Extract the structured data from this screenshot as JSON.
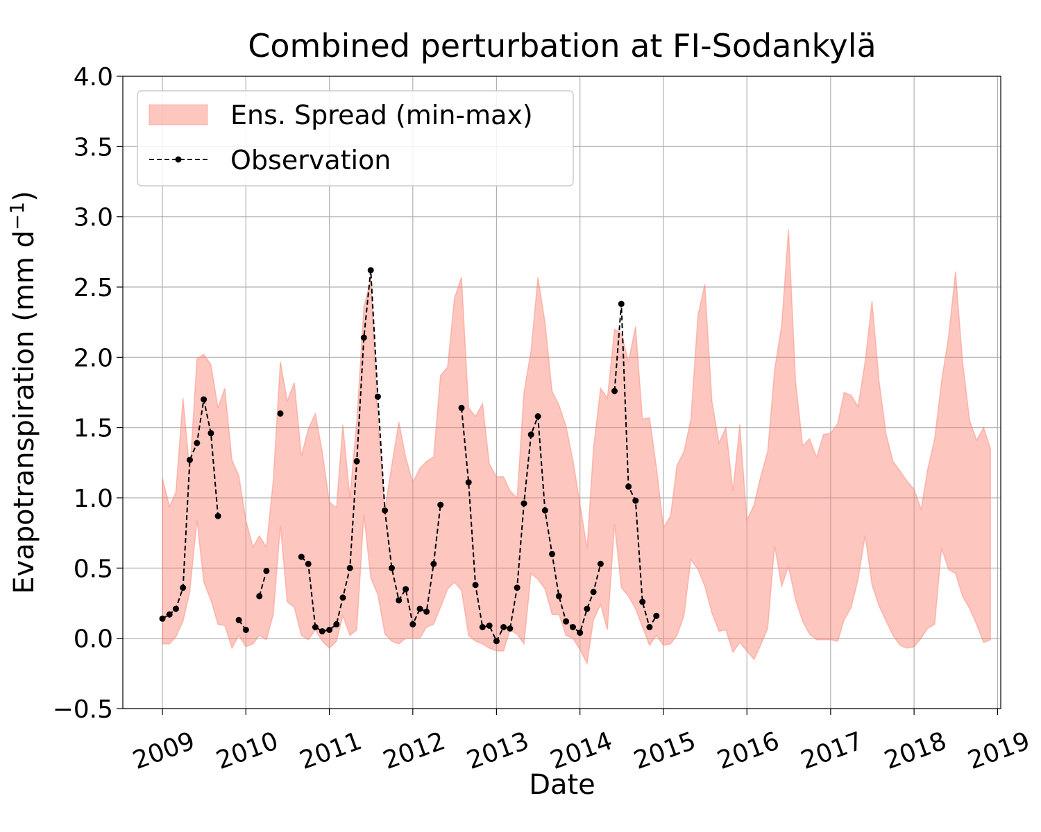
{
  "chart_data": {
    "type": "area",
    "title": "Combined perturbation at FI-Sodankylä",
    "xlabel": "Date",
    "ylabel": "Evapotranspiration  (mm d⁻¹)",
    "ylim": [
      -0.5,
      4.0
    ],
    "yticks": [
      -0.5,
      0.0,
      0.5,
      1.0,
      1.5,
      2.0,
      2.5,
      3.0,
      3.5,
      4.0
    ],
    "ytick_labels": [
      "−0.5",
      "0.0",
      "0.5",
      "1.0",
      "1.5",
      "2.0",
      "2.5",
      "3.0",
      "3.5",
      "4.0"
    ],
    "xlim": [
      "2008-07-12",
      "2019-01-15"
    ],
    "xticks": [
      "2009-01-01",
      "2010-01-01",
      "2011-01-01",
      "2012-01-01",
      "2013-01-01",
      "2014-01-01",
      "2015-01-01",
      "2016-01-01",
      "2017-01-01",
      "2018-01-01",
      "2019-01-01"
    ],
    "xtick_labels": [
      "2009",
      "2010",
      "2011",
      "2012",
      "2013",
      "2014",
      "2015",
      "2016",
      "2017",
      "2018",
      "2019"
    ],
    "grid": true,
    "legend_position": "upper-left",
    "series": [
      {
        "name": "Ens. Spread (min-max)",
        "kind": "band",
        "color": "#fa8072",
        "x": [
          "2009-01",
          "2009-02",
          "2009-03",
          "2009-04",
          "2009-05",
          "2009-06",
          "2009-07",
          "2009-08",
          "2009-09",
          "2009-10",
          "2009-11",
          "2009-12",
          "2010-01",
          "2010-02",
          "2010-03",
          "2010-04",
          "2010-05",
          "2010-06",
          "2010-07",
          "2010-08",
          "2010-09",
          "2010-10",
          "2010-11",
          "2010-12",
          "2011-01",
          "2011-02",
          "2011-03",
          "2011-04",
          "2011-05",
          "2011-06",
          "2011-07",
          "2011-08",
          "2011-09",
          "2011-10",
          "2011-11",
          "2011-12",
          "2012-01",
          "2012-02",
          "2012-03",
          "2012-04",
          "2012-05",
          "2012-06",
          "2012-07",
          "2012-08",
          "2012-09",
          "2012-10",
          "2012-11",
          "2012-12",
          "2013-01",
          "2013-02",
          "2013-03",
          "2013-04",
          "2013-05",
          "2013-06",
          "2013-07",
          "2013-08",
          "2013-09",
          "2013-10",
          "2013-11",
          "2013-12",
          "2014-01",
          "2014-02",
          "2014-03",
          "2014-04",
          "2014-05",
          "2014-06",
          "2014-07",
          "2014-08",
          "2014-09",
          "2014-10",
          "2014-11",
          "2014-12",
          "2015-01",
          "2015-02",
          "2015-03",
          "2015-04",
          "2015-05",
          "2015-06",
          "2015-07",
          "2015-08",
          "2015-09",
          "2015-10",
          "2015-11",
          "2015-12",
          "2016-01",
          "2016-02",
          "2016-03",
          "2016-04",
          "2016-05",
          "2016-06",
          "2016-07",
          "2016-08",
          "2016-09",
          "2016-10",
          "2016-11",
          "2016-12",
          "2017-01",
          "2017-02",
          "2017-03",
          "2017-04",
          "2017-05",
          "2017-06",
          "2017-07",
          "2017-08",
          "2017-09",
          "2017-10",
          "2017-11",
          "2017-12",
          "2018-01",
          "2018-02",
          "2018-03",
          "2018-04",
          "2018-05",
          "2018-06",
          "2018-07",
          "2018-08",
          "2018-09",
          "2018-10",
          "2018-11",
          "2018-12"
        ],
        "min": [
          -0.04,
          -0.04,
          0.01,
          0.12,
          0.33,
          0.84,
          0.4,
          0.27,
          0.1,
          0.09,
          -0.07,
          0.02,
          -0.06,
          -0.04,
          0.02,
          -0.01,
          0.17,
          0.8,
          0.26,
          0.22,
          0.02,
          -0.01,
          0.06,
          -0.02,
          -0.07,
          -0.02,
          0.16,
          0.02,
          0.06,
          0.88,
          0.43,
          0.31,
          0.03,
          -0.02,
          -0.04,
          0.0,
          0.0,
          0.0,
          0.08,
          0.1,
          0.22,
          0.35,
          0.4,
          0.34,
          0.02,
          -0.02,
          -0.04,
          -0.07,
          -0.09,
          -0.09,
          0.06,
          0.03,
          -0.04,
          0.46,
          0.42,
          0.35,
          0.17,
          0.17,
          0.02,
          0.0,
          -0.08,
          -0.18,
          0.13,
          0.24,
          0.06,
          0.81,
          0.36,
          0.3,
          0.21,
          0.08,
          -0.05,
          0.02,
          -0.05,
          -0.04,
          0.02,
          0.16,
          0.56,
          0.49,
          0.37,
          0.18,
          0.05,
          0.06,
          -0.1,
          -0.03,
          -0.09,
          -0.15,
          -0.05,
          0.07,
          0.66,
          0.37,
          0.51,
          0.27,
          0.12,
          0.03,
          -0.01,
          -0.01,
          -0.01,
          -0.02,
          0.13,
          0.22,
          0.42,
          0.73,
          0.38,
          0.23,
          0.12,
          0.02,
          -0.05,
          -0.07,
          -0.06,
          0.0,
          0.07,
          0.1,
          0.64,
          0.49,
          0.46,
          0.3,
          0.21,
          0.1,
          -0.03,
          -0.01
        ],
        "max": [
          1.14,
          0.94,
          1.04,
          1.71,
          1.18,
          1.99,
          2.02,
          1.95,
          1.64,
          1.78,
          1.27,
          1.16,
          0.84,
          0.65,
          0.73,
          0.65,
          1.13,
          1.97,
          1.69,
          1.82,
          1.3,
          1.49,
          1.6,
          1.33,
          0.97,
          0.93,
          1.52,
          1.0,
          1.55,
          2.36,
          2.55,
          1.55,
          0.92,
          1.23,
          1.54,
          1.29,
          1.11,
          1.21,
          1.26,
          1.29,
          1.87,
          1.93,
          2.42,
          2.57,
          1.64,
          1.58,
          1.67,
          1.24,
          1.15,
          1.15,
          1.05,
          1.0,
          1.75,
          2.05,
          2.57,
          2.25,
          1.76,
          1.66,
          1.51,
          1.27,
          0.96,
          0.64,
          1.35,
          1.78,
          1.71,
          2.2,
          2.17,
          1.97,
          2.22,
          1.56,
          1.57,
          1.22,
          0.79,
          0.87,
          1.23,
          1.33,
          1.56,
          2.3,
          2.52,
          1.69,
          1.39,
          1.5,
          1.05,
          1.52,
          0.84,
          0.95,
          1.15,
          1.33,
          1.91,
          2.23,
          2.91,
          1.83,
          1.37,
          1.42,
          1.29,
          1.45,
          1.46,
          1.53,
          1.75,
          1.73,
          1.65,
          1.97,
          2.4,
          1.83,
          1.45,
          1.26,
          1.19,
          1.12,
          1.06,
          0.92,
          1.2,
          1.42,
          1.83,
          2.15,
          2.61,
          1.97,
          1.55,
          1.41,
          1.5,
          1.35
        ]
      },
      {
        "name": "Observation",
        "kind": "line-markers",
        "color": "#000000",
        "x": [
          "2009-01",
          "2009-02",
          "2009-03",
          "2009-04",
          "2009-05",
          "2009-06",
          "2009-07",
          "2009-08",
          "2009-09",
          "2009-10",
          "2009-11",
          "2009-12",
          "2010-01",
          "2010-02",
          "2010-03",
          "2010-04",
          "2010-05",
          "2010-06",
          "2010-07",
          "2010-08",
          "2010-09",
          "2010-10",
          "2010-11",
          "2010-12",
          "2011-01",
          "2011-02",
          "2011-03",
          "2011-04",
          "2011-05",
          "2011-06",
          "2011-07",
          "2011-08",
          "2011-09",
          "2011-10",
          "2011-11",
          "2011-12",
          "2012-01",
          "2012-02",
          "2012-03",
          "2012-04",
          "2012-05",
          "2012-06",
          "2012-07",
          "2012-08",
          "2012-09",
          "2012-10",
          "2012-11",
          "2012-12",
          "2013-01",
          "2013-02",
          "2013-03",
          "2013-04",
          "2013-05",
          "2013-06",
          "2013-07",
          "2013-08",
          "2013-09",
          "2013-10",
          "2013-11",
          "2013-12",
          "2014-01",
          "2014-02",
          "2014-03",
          "2014-04",
          "2014-05",
          "2014-06",
          "2014-07",
          "2014-08",
          "2014-09",
          "2014-10",
          "2014-11",
          "2014-12"
        ],
        "y": [
          0.14,
          0.17,
          0.21,
          0.36,
          1.27,
          1.39,
          1.7,
          1.46,
          0.87,
          null,
          null,
          0.13,
          0.06,
          null,
          0.3,
          0.48,
          null,
          1.6,
          null,
          null,
          0.58,
          0.53,
          0.08,
          0.05,
          0.06,
          0.1,
          0.29,
          0.5,
          1.26,
          2.14,
          2.62,
          1.72,
          0.91,
          0.5,
          0.27,
          0.35,
          0.1,
          0.21,
          0.19,
          0.53,
          0.95,
          null,
          null,
          1.64,
          1.11,
          0.38,
          0.08,
          0.09,
          -0.02,
          0.08,
          0.07,
          0.36,
          0.96,
          1.45,
          1.58,
          0.91,
          0.6,
          0.3,
          0.12,
          0.08,
          0.04,
          0.21,
          0.33,
          0.53,
          null,
          1.76,
          2.38,
          1.08,
          0.98,
          0.26,
          0.08,
          0.16
        ]
      }
    ]
  }
}
